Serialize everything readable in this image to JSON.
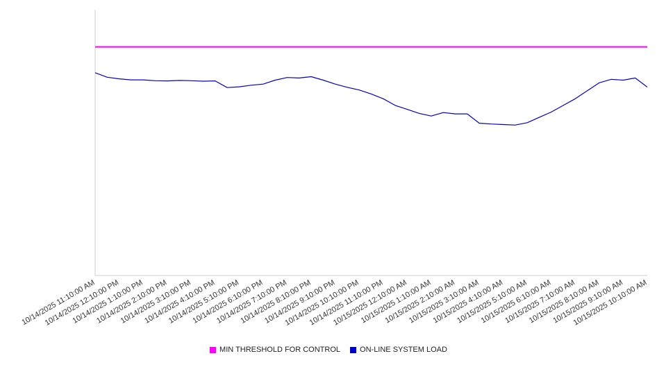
{
  "chart_data": {
    "type": "line",
    "title": "",
    "xlabel": "",
    "ylabel": "",
    "ylim": [
      0,
      100
    ],
    "grid": false,
    "legend_position": "bottom",
    "x_labels": [
      "10/14/2025 11:10:00 AM",
      "10/14/2025 12:10:00 PM",
      "10/14/2025 1:10:00 PM",
      "10/14/2025 2:10:00 PM",
      "10/14/2025 3:10:00 PM",
      "10/14/2025 4:10:00 PM",
      "10/14/2025 5:10:00 PM",
      "10/14/2025 6:10:00 PM",
      "10/14/2025 7:10:00 PM",
      "10/14/2025 8:10:00 PM",
      "10/14/2025 9:10:00 PM",
      "10/14/2025 10:10:00 PM",
      "10/14/2025 11:10:00 PM",
      "10/15/2025 12:10:00 AM",
      "10/15/2025 1:10:00 AM",
      "10/15/2025 2:10:00 AM",
      "10/15/2025 3:10:00 AM",
      "10/15/2025 4:10:00 AM",
      "10/15/2025 5:10:00 AM",
      "10/15/2025 6:10:00 AM",
      "10/15/2025 7:10:00 AM",
      "10/15/2025 8:10:00 AM",
      "10/15/2025 9:10:00 AM",
      "10/15/2025 10:10:00 AM"
    ],
    "series": [
      {
        "name": "MIN THRESHOLD FOR CONTROL",
        "color": "#ff00ff",
        "kind": "constant",
        "value": 86
      },
      {
        "name": "ON-LINE SYSTEM LOAD",
        "color": "#0000cc",
        "kind": "line",
        "x_step": 0.5,
        "values": [
          76.3,
          74.6,
          74.0,
          73.6,
          73.6,
          73.3,
          73.2,
          73.4,
          73.3,
          73.1,
          73.2,
          70.7,
          71.0,
          71.6,
          72.0,
          73.5,
          74.5,
          74.3,
          74.8,
          73.5,
          72.0,
          70.8,
          69.8,
          68.3,
          66.5,
          64.0,
          62.5,
          61.0,
          60.0,
          61.3,
          60.8,
          60.8,
          57.3,
          57.0,
          56.8,
          56.6,
          57.5,
          59.5,
          61.5,
          64.0,
          66.5,
          69.5,
          72.5,
          73.8,
          73.5,
          74.3,
          70.9
        ]
      }
    ],
    "axis_color": "#cccccc",
    "label_color": "#333333"
  }
}
